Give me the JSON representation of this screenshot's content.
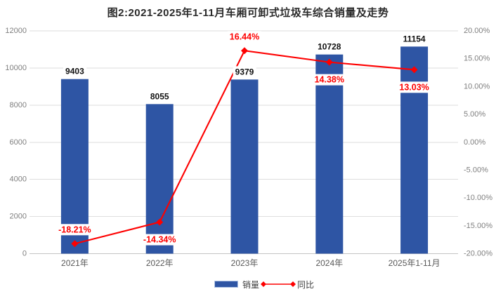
{
  "title": "图2:2021-2025年1-11月车厢可卸式垃圾车综合销量及走势",
  "chart_data": {
    "type": "bar+line combo",
    "categories": [
      "2021年",
      "2022年",
      "2023年",
      "2024年",
      "2025年1-11月"
    ],
    "series": [
      {
        "name": "销量",
        "type": "bar",
        "axis": "left",
        "values": [
          9403,
          8055,
          9379,
          10728,
          11154
        ],
        "labels": [
          "9403",
          "8055",
          "9379",
          "10728",
          "11154"
        ],
        "color": "#2e55a4"
      },
      {
        "name": "同比",
        "type": "line",
        "axis": "right",
        "values": [
          -18.21,
          -14.34,
          16.44,
          14.38,
          13.03
        ],
        "labels": [
          "-18.21%",
          "-14.34%",
          "16.44%",
          "14.38%",
          "13.03%"
        ],
        "label_position": [
          "above",
          "below",
          "above",
          "below",
          "below"
        ],
        "color": "#fe0000"
      }
    ],
    "left_axis": {
      "min": 0,
      "max": 12000,
      "step": 2000,
      "ticks": [
        "0",
        "2000",
        "4000",
        "6000",
        "8000",
        "10000",
        "12000"
      ]
    },
    "right_axis": {
      "min": -20,
      "max": 20,
      "step": 5,
      "ticks": [
        "-20.00%",
        "-15.00%",
        "-10.00%",
        "-5.00%",
        "0.00%",
        "5.00%",
        "10.00%",
        "15.00%",
        "20.00%"
      ]
    },
    "grid": true,
    "legend_position": "bottom"
  },
  "colors": {
    "bar": "#2e55a4",
    "line": "#fe0000",
    "grid": "#dedede",
    "baseline": "#c4c4c4",
    "axis_text": "#7f7f7f",
    "category_text": "#595959",
    "value_label": "#111111",
    "title_text": "#2b2b2b"
  }
}
